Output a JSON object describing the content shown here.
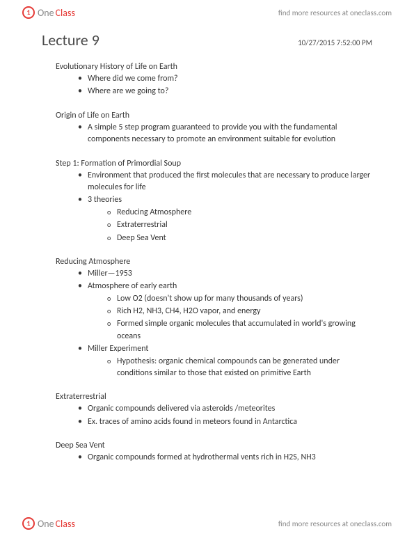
{
  "brand": {
    "one": "One",
    "class": "Class",
    "circle": "1"
  },
  "resource_text": "find more resources at oneclass.com",
  "title": "Lecture 9",
  "timestamp": "10/27/2015 7:52:00 PM",
  "sections": [
    {
      "heading": "Evolutionary History of Life on Earth",
      "items": [
        {
          "text": "Where did we come from?"
        },
        {
          "text": "Where are we going to?"
        }
      ]
    },
    {
      "heading": "Origin of Life on Earth",
      "items": [
        {
          "text": "A simple 5 step program guaranteed to provide you with the fundamental components necessary to promote an environment suitable for evolution"
        }
      ]
    },
    {
      "heading": "Step 1: Formation of Primordial Soup",
      "items": [
        {
          "text": "Environment that produced the first molecules that are necessary to produce larger molecules for life"
        },
        {
          "text": "3 theories",
          "sub": [
            "Reducing Atmosphere",
            "Extraterrestrial",
            "Deep Sea Vent"
          ]
        }
      ]
    },
    {
      "heading": "Reducing Atmosphere",
      "items": [
        {
          "text": "Miller—1953"
        },
        {
          "text": "Atmosphere of early earth",
          "sub": [
            "Low O2 (doesn't show up for many thousands of years)",
            "Rich H2, NH3, CH4, H2O vapor, and energy",
            "Formed simple organic molecules that accumulated in world's growing oceans"
          ]
        },
        {
          "text": "Miller Experiment",
          "sub": [
            "Hypothesis: organic chemical compounds can be generated under conditions similar to those that existed on primitive Earth"
          ]
        }
      ]
    },
    {
      "heading": "Extraterrestrial",
      "items": [
        {
          "text": "Organic compounds delivered via asteroids /meteorites"
        },
        {
          "text": "Ex. traces of amino acids found in meteors found in Antarctica"
        }
      ]
    },
    {
      "heading": "Deep Sea Vent",
      "items": [
        {
          "text": "Organic compounds formed at hydrothermal vents rich in H2S, NH3"
        }
      ]
    }
  ]
}
